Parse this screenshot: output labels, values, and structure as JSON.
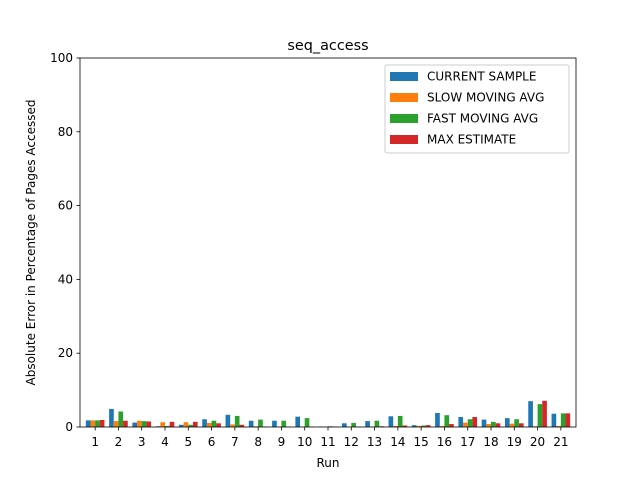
{
  "chart_data": {
    "type": "bar",
    "title": "seq_access",
    "xlabel": "Run",
    "ylabel": "Absolute Error in Percentage of Pages Accessed",
    "ylim": [
      0,
      100
    ],
    "yticks": [
      0,
      20,
      40,
      60,
      80,
      100
    ],
    "grid": false,
    "legend_position": "top-right",
    "categories": [
      "1",
      "2",
      "3",
      "4",
      "5",
      "6",
      "7",
      "8",
      "9",
      "10",
      "11",
      "12",
      "13",
      "14",
      "15",
      "16",
      "17",
      "18",
      "19",
      "20",
      "21"
    ],
    "series": [
      {
        "name": "CURRENT SAMPLE",
        "color": "#1f77b4",
        "values": [
          1.8,
          4.9,
          1.2,
          0.2,
          0.6,
          2.1,
          3.3,
          1.7,
          1.7,
          2.8,
          0.1,
          1.0,
          1.6,
          2.9,
          0.5,
          3.8,
          2.7,
          2.0,
          2.4,
          7.0,
          3.6
        ]
      },
      {
        "name": "SLOW MOVING AVG",
        "color": "#ff7f0e",
        "values": [
          1.8,
          1.6,
          1.7,
          1.3,
          1.3,
          1.1,
          0.7,
          0.2,
          0.1,
          0.1,
          0.1,
          0.1,
          0.1,
          0.3,
          0.3,
          0.3,
          1.2,
          0.8,
          0.9,
          0.2,
          0.3
        ]
      },
      {
        "name": "FAST MOVING AVG",
        "color": "#2ca02c",
        "values": [
          1.8,
          4.2,
          1.6,
          0.3,
          0.6,
          1.7,
          3.0,
          2.0,
          1.7,
          2.4,
          0.2,
          1.1,
          1.7,
          3.0,
          0.4,
          3.2,
          2.1,
          1.4,
          2.1,
          6.2,
          3.7
        ]
      },
      {
        "name": "MAX ESTIMATE",
        "color": "#d62728",
        "values": [
          1.9,
          1.7,
          1.5,
          1.4,
          1.4,
          1.0,
          0.6,
          0.1,
          0.1,
          0.1,
          0.1,
          0.1,
          0.2,
          0.4,
          0.5,
          0.8,
          2.7,
          1.0,
          1.0,
          7.1,
          3.7
        ]
      }
    ]
  }
}
